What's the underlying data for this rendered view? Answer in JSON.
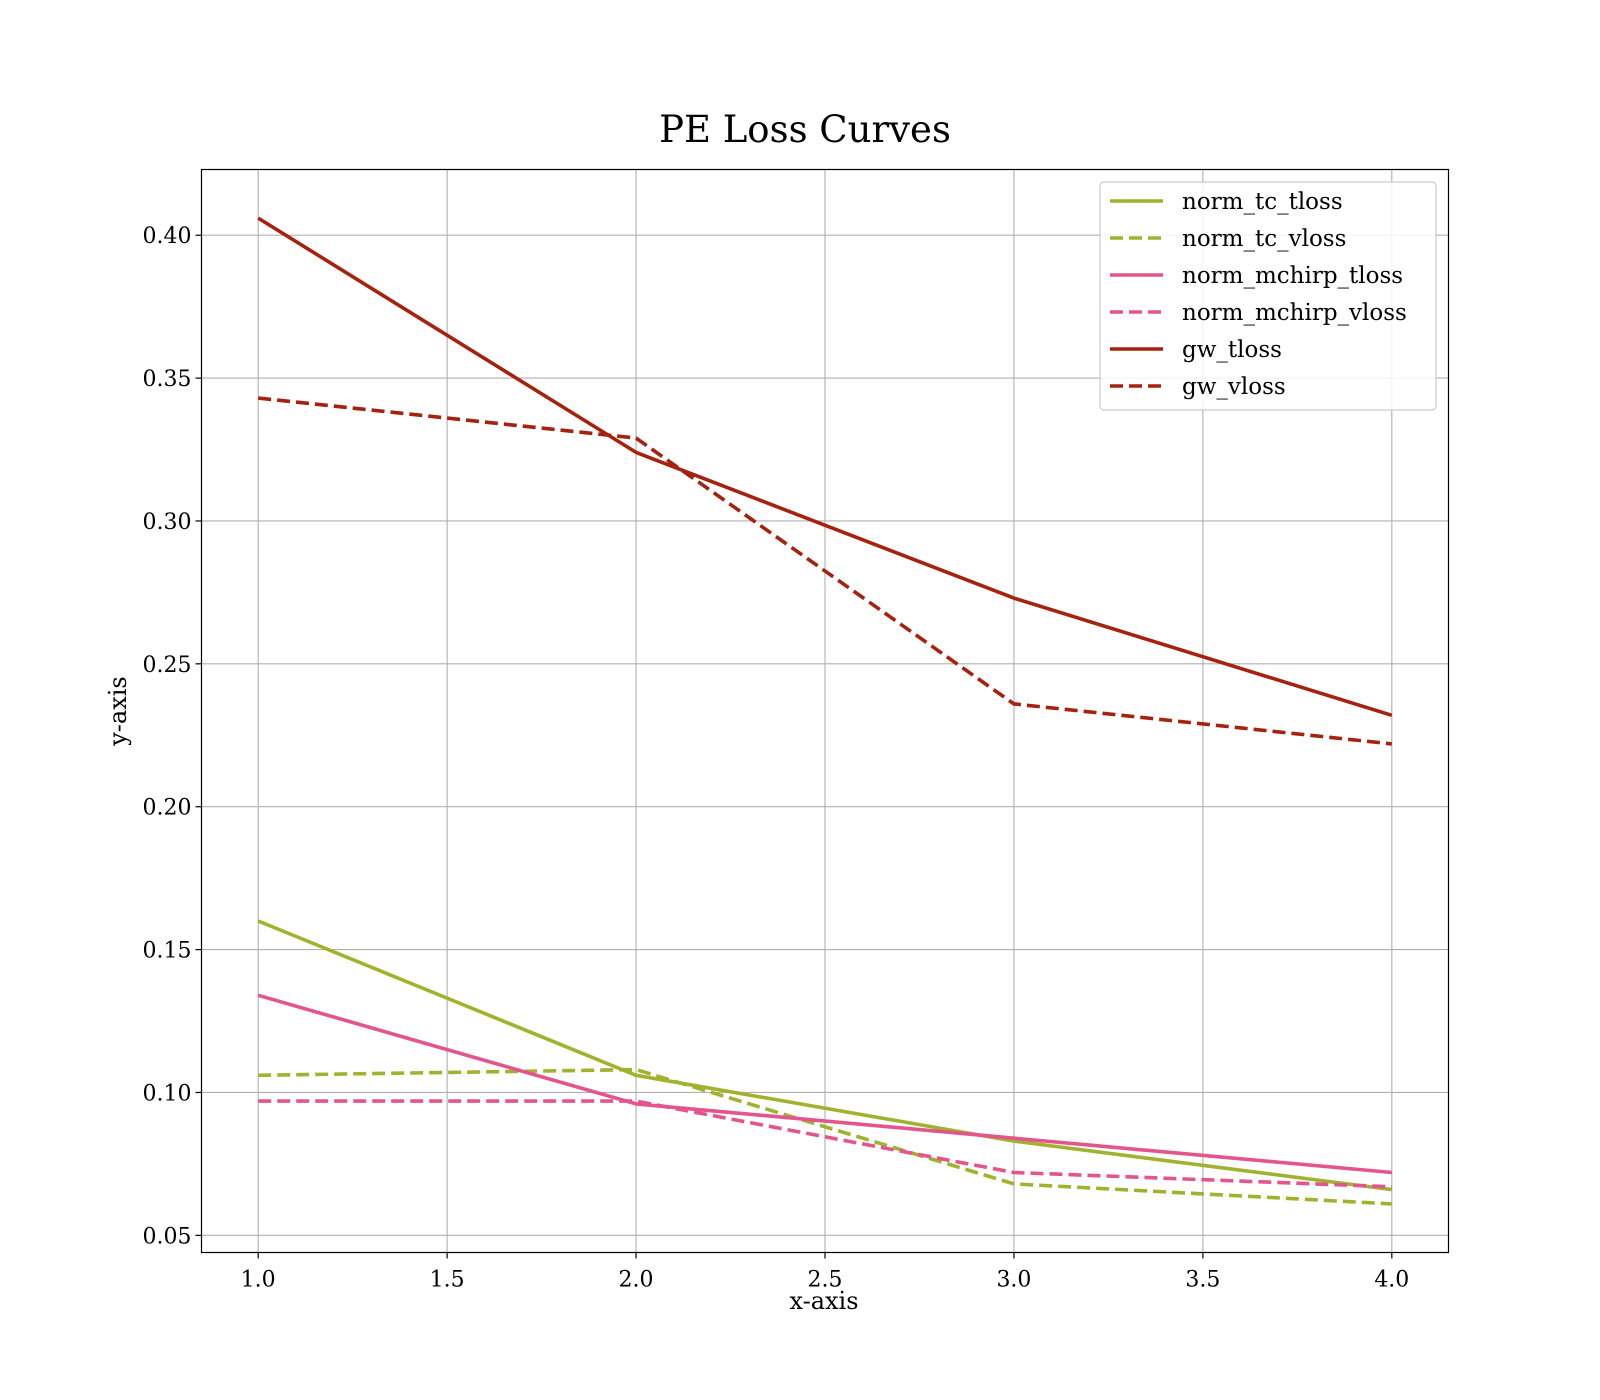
{
  "chart_data": {
    "type": "line",
    "title": "PE Loss Curves",
    "xlabel": "x-axis",
    "ylabel": "y-axis",
    "xlim": [
      0.85,
      4.15
    ],
    "ylim": [
      0.044,
      0.423
    ],
    "x": [
      1.0,
      2.0,
      3.0,
      4.0
    ],
    "xticks": [
      1.0,
      1.5,
      2.0,
      2.5,
      3.0,
      3.5,
      4.0
    ],
    "xtick_labels": [
      "1.0",
      "1.5",
      "2.0",
      "2.5",
      "3.0",
      "3.5",
      "4.0"
    ],
    "yticks": [
      0.05,
      0.1,
      0.15,
      0.2,
      0.25,
      0.3,
      0.35,
      0.4
    ],
    "ytick_labels": [
      "0.05",
      "0.10",
      "0.15",
      "0.20",
      "0.25",
      "0.30",
      "0.35",
      "0.40"
    ],
    "grid": true,
    "legend_position": "top-right",
    "series": [
      {
        "name": "norm_tc_tloss",
        "values": [
          0.16,
          0.106,
          0.083,
          0.066
        ],
        "color": "#a2b22e",
        "dash": "solid"
      },
      {
        "name": "norm_tc_vloss",
        "values": [
          0.106,
          0.108,
          0.068,
          0.061
        ],
        "color": "#a2b22e",
        "dash": "dashed"
      },
      {
        "name": "norm_mchirp_tloss",
        "values": [
          0.134,
          0.096,
          0.084,
          0.072
        ],
        "color": "#e3558c",
        "dash": "solid"
      },
      {
        "name": "norm_mchirp_vloss",
        "values": [
          0.097,
          0.097,
          0.072,
          0.067
        ],
        "color": "#e3558c",
        "dash": "dashed"
      },
      {
        "name": "gw_tloss",
        "values": [
          0.406,
          0.324,
          0.273,
          0.232
        ],
        "color": "#a6220f",
        "dash": "solid"
      },
      {
        "name": "gw_vloss",
        "values": [
          0.343,
          0.329,
          0.236,
          0.222
        ],
        "color": "#a6220f",
        "dash": "dashed"
      }
    ]
  }
}
